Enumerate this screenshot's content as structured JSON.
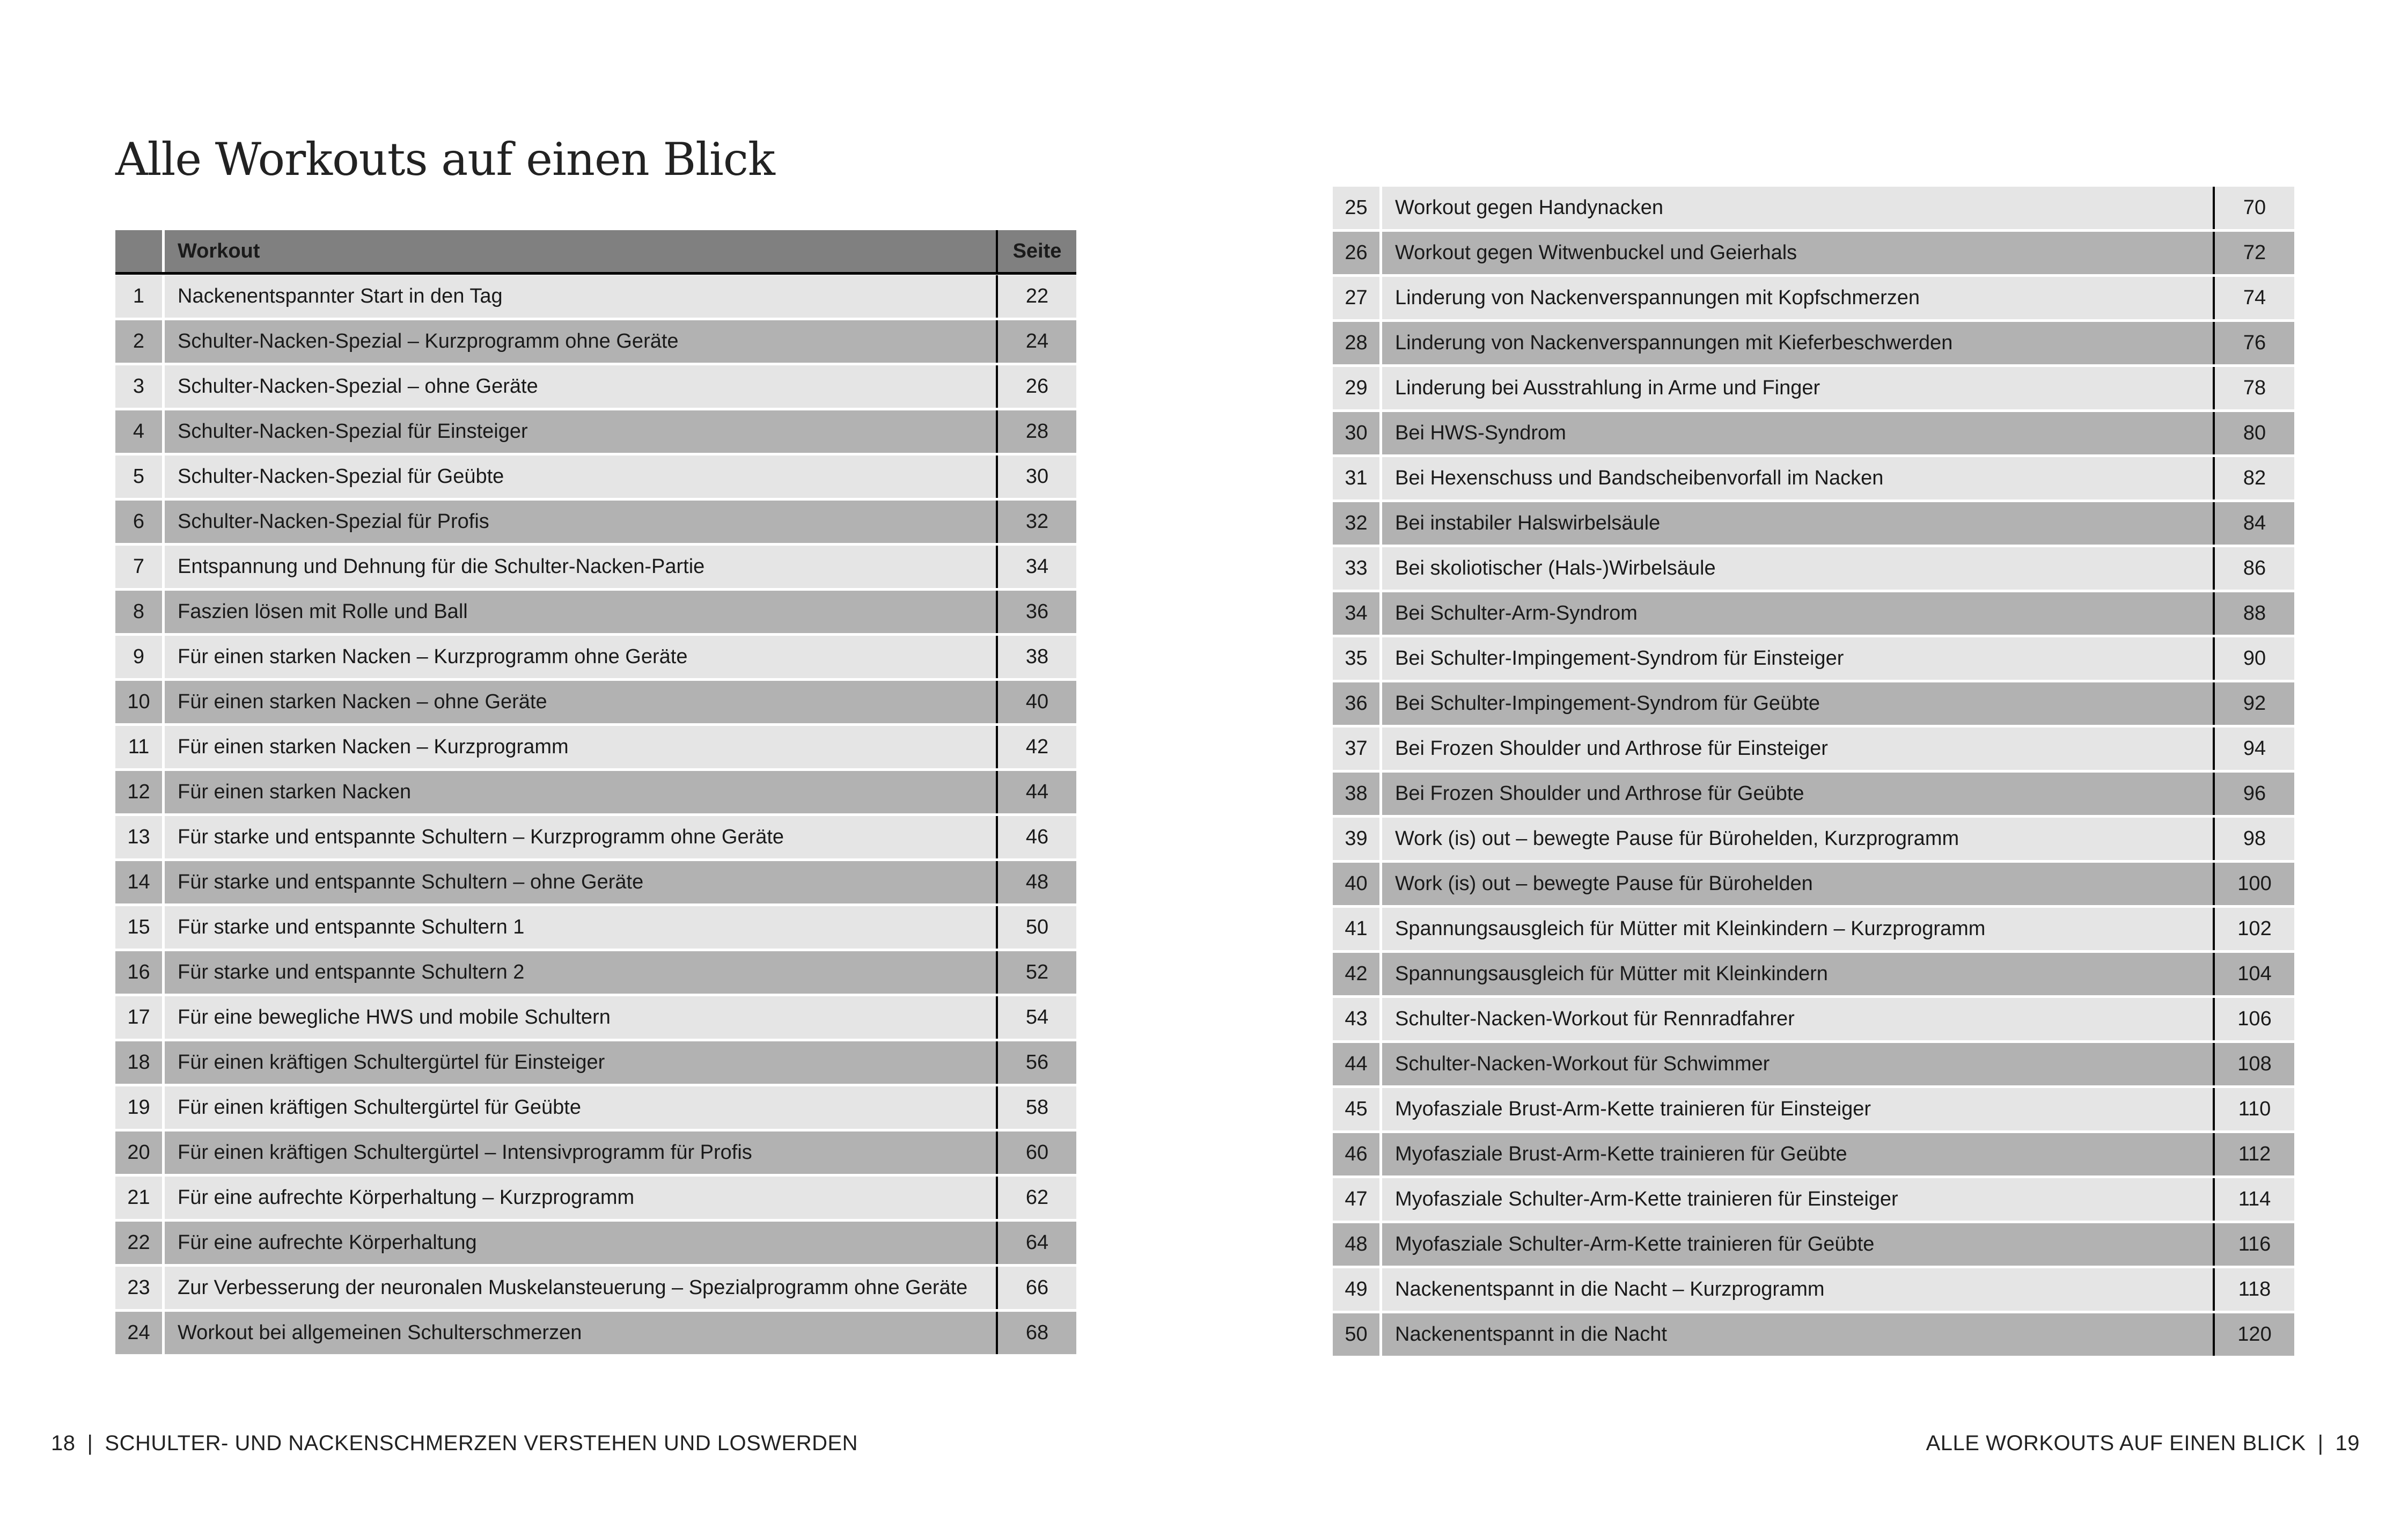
{
  "title": "Alle Workouts auf einen Blick",
  "table_header": {
    "number": "",
    "workout": "Workout",
    "page": "Seite"
  },
  "colors": {
    "header": "#808080",
    "row_light": "#e5e5e5",
    "row_dark": "#b2b2b2"
  },
  "workouts": [
    {
      "n": "1",
      "name": "Nackenentspannter Start in den Tag",
      "page": "22"
    },
    {
      "n": "2",
      "name": "Schulter-Nacken-Spezial – Kurzprogramm ohne Geräte",
      "page": "24"
    },
    {
      "n": "3",
      "name": "Schulter-Nacken-Spezial – ohne Geräte",
      "page": "26"
    },
    {
      "n": "4",
      "name": "Schulter-Nacken-Spezial für Einsteiger",
      "page": "28"
    },
    {
      "n": "5",
      "name": "Schulter-Nacken-Spezial für Geübte",
      "page": "30"
    },
    {
      "n": "6",
      "name": "Schulter-Nacken-Spezial für Profis",
      "page": "32"
    },
    {
      "n": "7",
      "name": "Entspannung und Dehnung für die Schulter-Nacken-Partie",
      "page": "34"
    },
    {
      "n": "8",
      "name": "Faszien lösen mit Rolle und Ball",
      "page": "36"
    },
    {
      "n": "9",
      "name": "Für einen starken Nacken – Kurzprogramm ohne Geräte",
      "page": "38"
    },
    {
      "n": "10",
      "name": "Für einen starken Nacken – ohne Geräte",
      "page": "40"
    },
    {
      "n": "11",
      "name": "Für einen starken Nacken – Kurzprogramm",
      "page": "42"
    },
    {
      "n": "12",
      "name": "Für einen starken Nacken",
      "page": "44"
    },
    {
      "n": "13",
      "name": "Für starke und entspannte Schultern – Kurzprogramm ohne Geräte",
      "page": "46"
    },
    {
      "n": "14",
      "name": "Für starke und entspannte Schultern – ohne Geräte",
      "page": "48"
    },
    {
      "n": "15",
      "name": "Für starke und entspannte Schultern 1",
      "page": "50"
    },
    {
      "n": "16",
      "name": "Für starke und entspannte Schultern 2",
      "page": "52"
    },
    {
      "n": "17",
      "name": "Für eine bewegliche HWS und mobile Schultern",
      "page": "54"
    },
    {
      "n": "18",
      "name": "Für einen kräftigen Schultergürtel für Einsteiger",
      "page": "56"
    },
    {
      "n": "19",
      "name": "Für einen kräftigen Schultergürtel für Geübte",
      "page": "58"
    },
    {
      "n": "20",
      "name": "Für einen kräftigen Schultergürtel – Intensivprogramm für Profis",
      "page": "60"
    },
    {
      "n": "21",
      "name": "Für eine aufrechte Körperhaltung – Kurzprogramm",
      "page": "62"
    },
    {
      "n": "22",
      "name": "Für eine aufrechte Körperhaltung",
      "page": "64"
    },
    {
      "n": "23",
      "name": "Zur Verbesserung der neuronalen Muskelansteuerung – Spezialprogramm ohne Geräte",
      "page": "66"
    },
    {
      "n": "24",
      "name": "Workout bei allgemeinen Schulterschmerzen",
      "page": "68"
    },
    {
      "n": "25",
      "name": "Workout gegen Handynacken",
      "page": "70"
    },
    {
      "n": "26",
      "name": "Workout gegen Witwenbuckel und Geierhals",
      "page": "72"
    },
    {
      "n": "27",
      "name": "Linderung von Nackenverspannungen mit Kopfschmerzen",
      "page": "74"
    },
    {
      "n": "28",
      "name": "Linderung von Nackenverspannungen mit Kieferbeschwerden",
      "page": "76"
    },
    {
      "n": "29",
      "name": "Linderung bei Ausstrahlung in Arme und Finger",
      "page": "78"
    },
    {
      "n": "30",
      "name": "Bei HWS-Syndrom",
      "page": "80"
    },
    {
      "n": "31",
      "name": "Bei Hexenschuss und Bandscheibenvorfall im Nacken",
      "page": "82"
    },
    {
      "n": "32",
      "name": "Bei instabiler Halswirbelsäule",
      "page": "84"
    },
    {
      "n": "33",
      "name": "Bei skoliotischer (Hals-)Wirbelsäule",
      "page": "86"
    },
    {
      "n": "34",
      "name": "Bei Schulter-Arm-Syndrom",
      "page": "88"
    },
    {
      "n": "35",
      "name": "Bei Schulter-Impingement-Syndrom für Einsteiger",
      "page": "90"
    },
    {
      "n": "36",
      "name": "Bei Schulter-Impingement-Syndrom für Geübte",
      "page": "92"
    },
    {
      "n": "37",
      "name": "Bei Frozen Shoulder und Arthrose für Einsteiger",
      "page": "94"
    },
    {
      "n": "38",
      "name": "Bei Frozen Shoulder und Arthrose für Geübte",
      "page": "96"
    },
    {
      "n": "39",
      "name": "Work (is) out – bewegte Pause für Bürohelden, Kurzprogramm",
      "page": "98"
    },
    {
      "n": "40",
      "name": "Work (is) out – bewegte Pause für Bürohelden",
      "page": "100"
    },
    {
      "n": "41",
      "name": "Spannungsausgleich für Mütter mit Kleinkindern – Kurzprogramm",
      "page": "102"
    },
    {
      "n": "42",
      "name": "Spannungsausgleich für Mütter mit Kleinkindern",
      "page": "104"
    },
    {
      "n": "43",
      "name": "Schulter-Nacken-Workout für Rennradfahrer",
      "page": "106"
    },
    {
      "n": "44",
      "name": "Schulter-Nacken-Workout für Schwimmer",
      "page": "108"
    },
    {
      "n": "45",
      "name": "Myofasziale Brust-Arm-Kette trainieren für Einsteiger",
      "page": "110"
    },
    {
      "n": "46",
      "name": "Myofasziale Brust-Arm-Kette trainieren für Geübte",
      "page": "112"
    },
    {
      "n": "47",
      "name": "Myofasziale Schulter-Arm-Kette trainieren für Einsteiger",
      "page": "114"
    },
    {
      "n": "48",
      "name": "Myofasziale Schulter-Arm-Kette trainieren für Geübte",
      "page": "116"
    },
    {
      "n": "49",
      "name": "Nackenentspannt in die Nacht – Kurzprogramm",
      "page": "118"
    },
    {
      "n": "50",
      "name": "Nackenentspannt in die Nacht",
      "page": "120"
    }
  ],
  "footer_left": {
    "page_number": "18",
    "separator": "|",
    "text": "SCHULTER- UND NACKENSCHMERZEN VERSTEHEN UND LOSWERDEN"
  },
  "footer_right": {
    "page_number": "19",
    "separator": "|",
    "text": "ALLE WORKOUTS AUF EINEN BLICK"
  }
}
